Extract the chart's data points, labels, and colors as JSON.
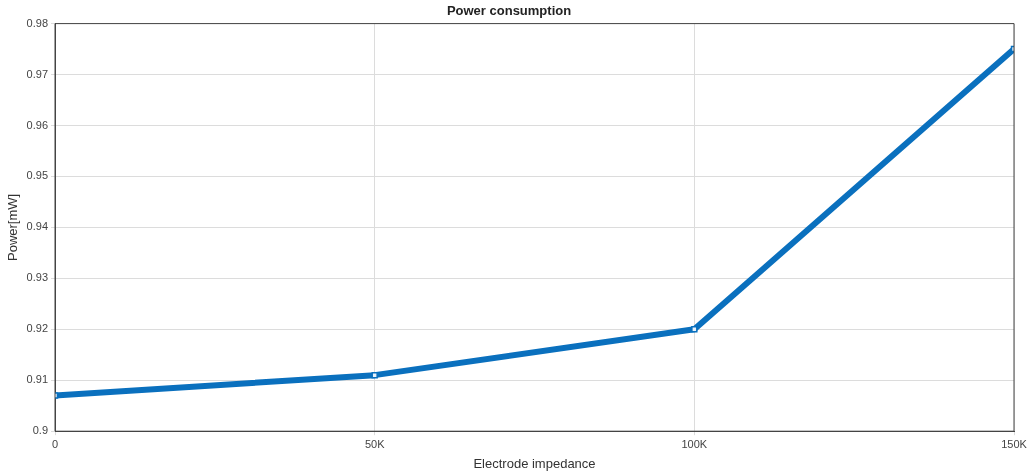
{
  "chart_data": {
    "type": "line",
    "title": "Power consumption",
    "xlabel": "Electrode impedance",
    "ylabel": "Power[mW]",
    "x": [
      0,
      50000,
      100000,
      150000
    ],
    "series": [
      {
        "color": "#0a70be",
        "values": [
          0.907,
          0.911,
          0.92,
          0.975
        ]
      }
    ],
    "xlim": [
      0,
      150000
    ],
    "xticks": [
      0,
      {
        "value": 50000,
        "label": "50K"
      },
      {
        "value": 100000,
        "label": "100K"
      },
      {
        "value": 150000,
        "label": "150K"
      }
    ],
    "ylim": [
      0.9,
      0.98
    ],
    "yticks": [
      0.9,
      0.91,
      0.92,
      0.93,
      0.94,
      0.95,
      0.96,
      0.97,
      0.98
    ],
    "grid": true,
    "legend": false,
    "marker": "square",
    "line_style": "solid"
  }
}
